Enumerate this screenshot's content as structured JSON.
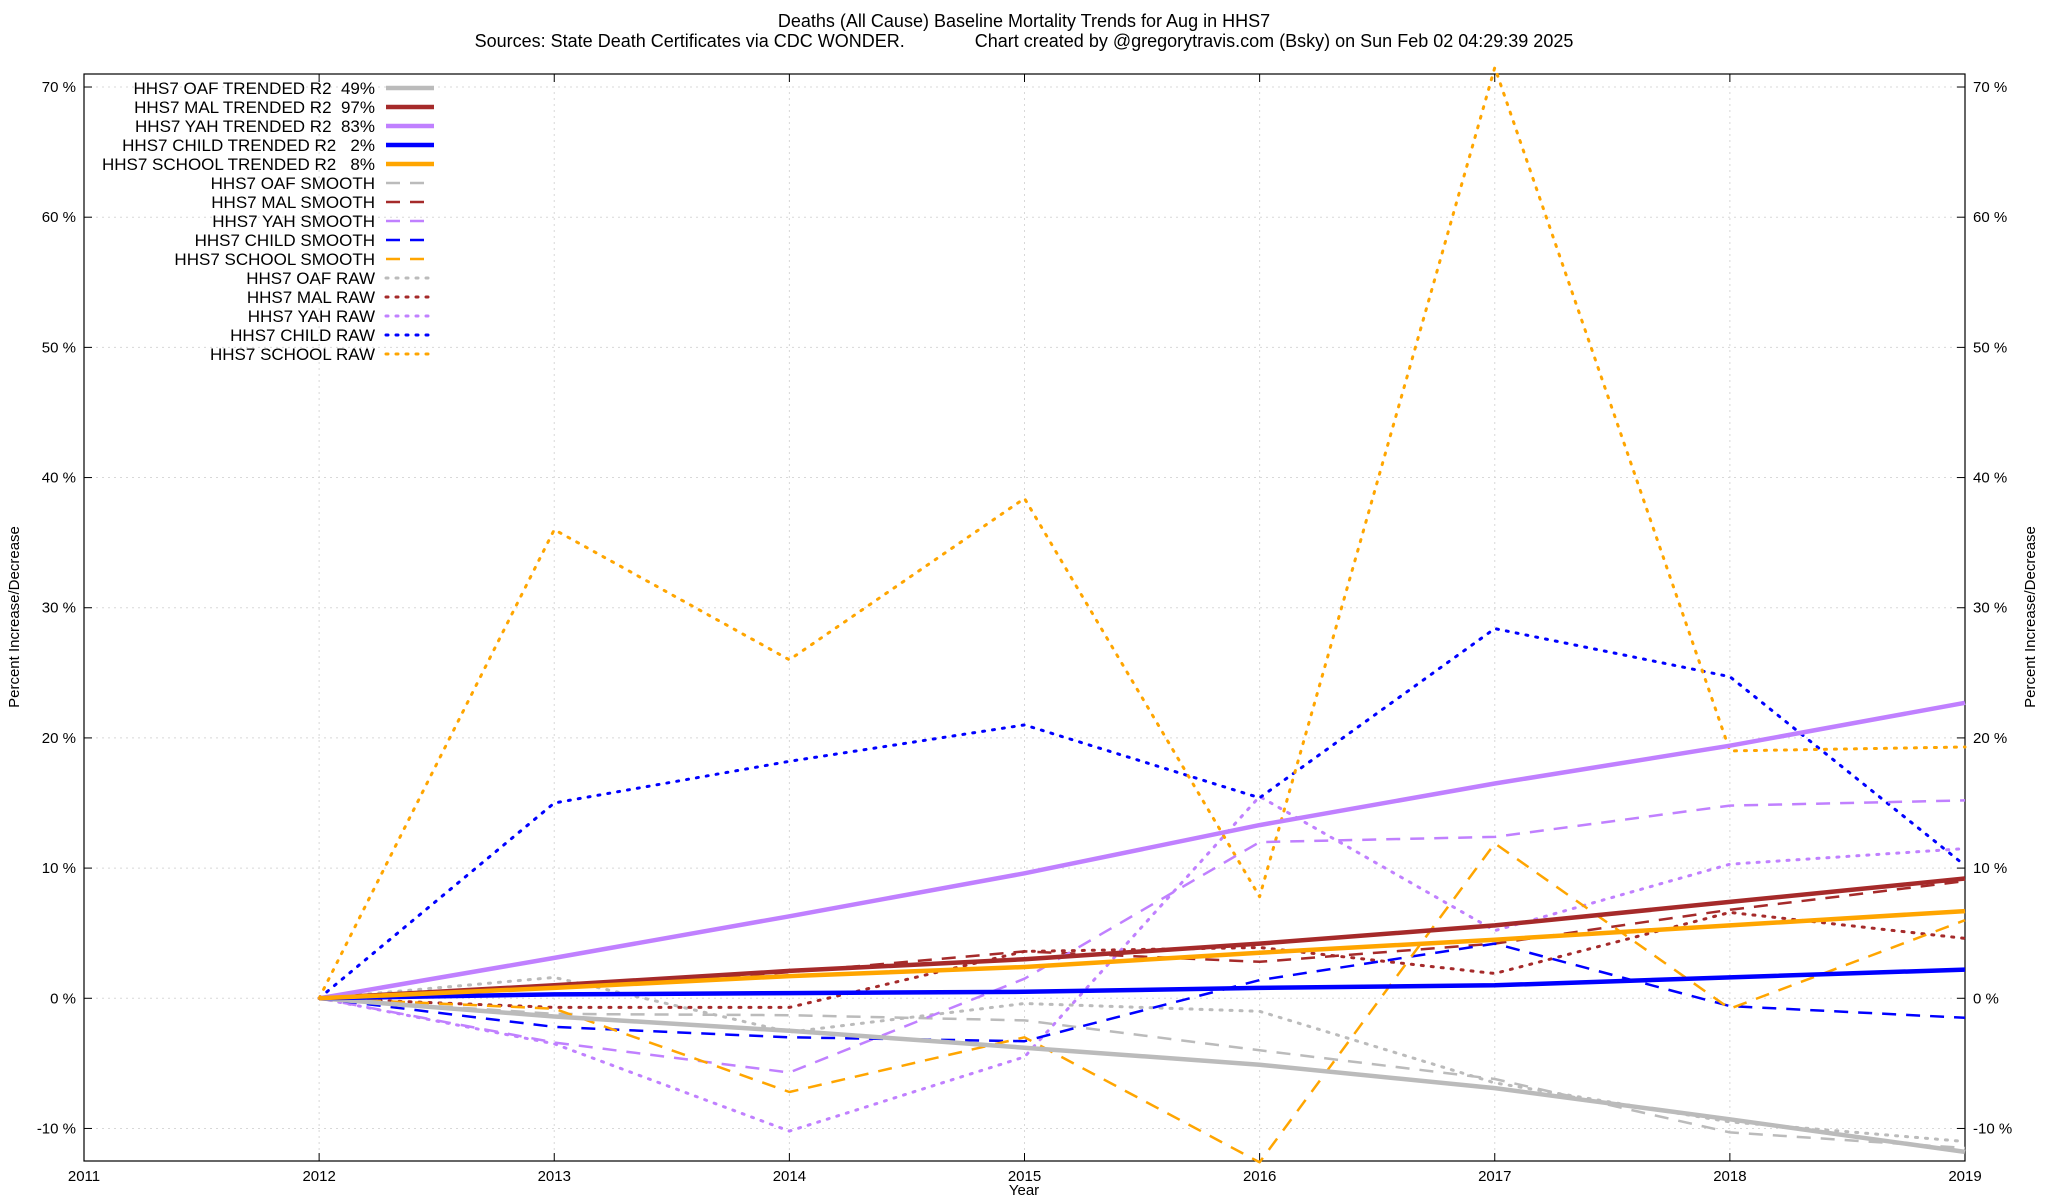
{
  "chart_data": {
    "type": "line",
    "title": "Deaths (All Cause)  Baseline Mortality Trends for Aug in HHS7",
    "subtitle": "Sources: State Death Certificates via CDC WONDER.              Chart created by @gregorytravis.com (Bsky) on Sun Feb 02 04:29:39 2025",
    "xlabel": "Year",
    "ylabel": "Percent Increase/Decrease",
    "y2label": "Percent Increase/Decrease",
    "xlim": [
      2011,
      2019
    ],
    "ylim": [
      -12.5,
      71
    ],
    "x_ticks": [
      2011,
      2012,
      2013,
      2014,
      2015,
      2016,
      2017,
      2018,
      2019
    ],
    "x_tick_labels": [
      "2011",
      "2012",
      "2013",
      "2014",
      "2015",
      "2016",
      "2017",
      "2018",
      "2019"
    ],
    "y_ticks": [
      -10,
      0,
      10,
      20,
      30,
      40,
      50,
      60,
      70
    ],
    "y_tick_labels": [
      "-10 %",
      "0 %",
      "10 %",
      "20 %",
      "30 %",
      "40 %",
      "50 %",
      "60 %",
      "70 %"
    ],
    "grid": true,
    "legend_position": "top-left",
    "x": [
      2012,
      2013,
      2014,
      2015,
      2016,
      2017,
      2018,
      2019
    ],
    "series": [
      {
        "name": "HHS7 OAF TRENDED R2  49%",
        "color": "#bbbbbb",
        "style": "solid",
        "values": [
          0,
          -1.4,
          -2.5,
          -3.8,
          -5.1,
          -6.9,
          -9.3,
          -11.8
        ]
      },
      {
        "name": "HHS7 MAL TRENDED R2  97%",
        "color": "#a52a2a",
        "style": "solid",
        "values": [
          0,
          1.0,
          2.1,
          3.0,
          4.2,
          5.6,
          7.4,
          9.2
        ]
      },
      {
        "name": "HHS7 YAH TRENDED R2  83%",
        "color": "#c080ff",
        "style": "solid",
        "values": [
          0,
          3.1,
          6.3,
          9.6,
          13.3,
          16.5,
          19.4,
          22.7
        ]
      },
      {
        "name": "HHS7 CHILD TRENDED R2   2%",
        "color": "#0000ff",
        "style": "solid",
        "values": [
          0,
          0.3,
          0.4,
          0.5,
          0.8,
          1.0,
          1.6,
          2.2
        ]
      },
      {
        "name": "HHS7 SCHOOL TRENDED R2   8%",
        "color": "#ffa500",
        "style": "solid",
        "values": [
          0,
          0.8,
          1.7,
          2.4,
          3.5,
          4.5,
          5.6,
          6.7
        ]
      },
      {
        "name": "HHS7 OAF SMOOTH",
        "color": "#bbbbbb",
        "style": "dashed",
        "values": [
          0,
          -1.2,
          -1.3,
          -1.7,
          -4.0,
          -6.2,
          -10.3,
          -11.5
        ]
      },
      {
        "name": "HHS7 MAL SMOOTH",
        "color": "#a52a2a",
        "style": "dashed",
        "values": [
          0,
          0.8,
          2.0,
          3.6,
          2.8,
          4.2,
          6.8,
          9.0
        ]
      },
      {
        "name": "HHS7 YAH SMOOTH",
        "color": "#c080ff",
        "style": "dashed",
        "values": [
          0,
          -3.4,
          -5.7,
          1.5,
          12.0,
          12.4,
          14.8,
          15.2
        ]
      },
      {
        "name": "HHS7 CHILD SMOOTH",
        "color": "#0000ff",
        "style": "dashed",
        "values": [
          0,
          -2.2,
          -3.0,
          -3.3,
          1.4,
          4.2,
          -0.6,
          -1.5
        ]
      },
      {
        "name": "HHS7 SCHOOL SMOOTH",
        "color": "#ffa500",
        "style": "dashed",
        "values": [
          0,
          -0.8,
          -7.2,
          -3.0,
          -12.6,
          11.9,
          -0.8,
          6.0
        ]
      },
      {
        "name": "HHS7 OAF RAW",
        "color": "#bbbbbb",
        "style": "dotted",
        "values": [
          0,
          1.6,
          -2.6,
          -0.4,
          -1.0,
          -6.5,
          -9.5,
          -11.0
        ]
      },
      {
        "name": "HHS7 MAL RAW",
        "color": "#a52a2a",
        "style": "dotted",
        "values": [
          0,
          -0.7,
          -0.7,
          3.6,
          3.9,
          1.9,
          6.6,
          4.6
        ]
      },
      {
        "name": "HHS7 YAH RAW",
        "color": "#c080ff",
        "style": "dotted",
        "values": [
          0,
          -3.5,
          -10.2,
          -4.5,
          15.5,
          5.2,
          10.3,
          11.5
        ]
      },
      {
        "name": "HHS7 CHILD RAW",
        "color": "#0000ff",
        "style": "dotted",
        "values": [
          0,
          15.0,
          18.2,
          21.0,
          15.4,
          28.4,
          24.7,
          10.2
        ]
      },
      {
        "name": "HHS7 SCHOOL RAW",
        "color": "#ffa500",
        "style": "dotted",
        "values": [
          0,
          36.0,
          26.0,
          38.4,
          7.8,
          71.5,
          19.0,
          19.3
        ]
      }
    ]
  }
}
